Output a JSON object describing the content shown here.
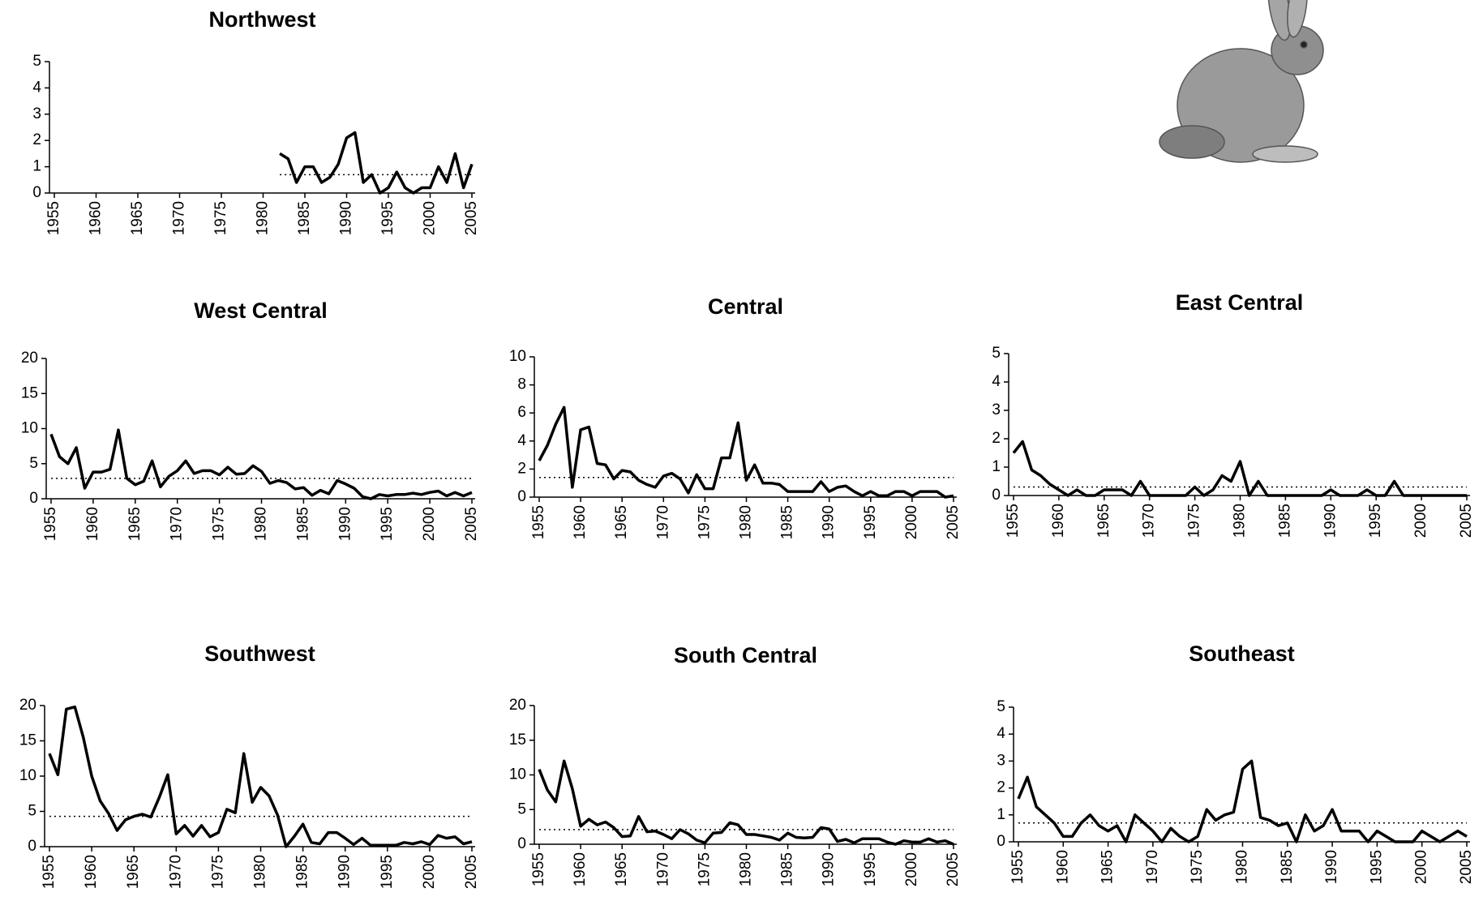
{
  "chart_data": [
    {
      "type": "line",
      "title": "Northwest",
      "color": "#000000",
      "x": [
        1982,
        1983,
        1984,
        1985,
        1986,
        1987,
        1988,
        1989,
        1990,
        1991,
        1992,
        1993,
        1994,
        1995,
        1996,
        1997,
        1998,
        1999,
        2000,
        2001,
        2002,
        2003,
        2004,
        2005
      ],
      "values": [
        1.5,
        1.3,
        0.4,
        1.0,
        1.0,
        0.4,
        0.6,
        1.1,
        2.1,
        2.3,
        0.4,
        0.7,
        0,
        0.2,
        0.8,
        0.2,
        0,
        0.2,
        0.2,
        1.0,
        0.4,
        1.5,
        0.2,
        1.1
      ],
      "mean": 0.7,
      "xlim": [
        1955,
        2005
      ],
      "xticks": [
        1955,
        1960,
        1965,
        1970,
        1975,
        1980,
        1985,
        1990,
        1995,
        2000,
        2005
      ],
      "ylim": [
        0,
        5
      ],
      "yticks": [
        0,
        1,
        2,
        3,
        4,
        5
      ]
    },
    {
      "type": "line",
      "title": "West Central",
      "color": "#000000",
      "x": [
        1955,
        1956,
        1957,
        1958,
        1959,
        1960,
        1961,
        1962,
        1963,
        1964,
        1965,
        1966,
        1967,
        1968,
        1969,
        1970,
        1971,
        1972,
        1973,
        1974,
        1975,
        1976,
        1977,
        1978,
        1979,
        1980,
        1981,
        1982,
        1983,
        1984,
        1985,
        1986,
        1987,
        1988,
        1989,
        1990,
        1991,
        1992,
        1993,
        1994,
        1995,
        1996,
        1997,
        1998,
        1999,
        2000,
        2001,
        2002,
        2003,
        2004,
        2005
      ],
      "values": [
        9.2,
        6,
        5,
        7.3,
        1.5,
        3.8,
        3.8,
        4.2,
        9.8,
        2.9,
        2,
        2.5,
        5.4,
        1.7,
        3.2,
        4,
        5.4,
        3.6,
        4,
        4,
        3.4,
        4.5,
        3.5,
        3.6,
        4.7,
        3.9,
        2.2,
        2.6,
        2.3,
        1.4,
        1.6,
        0.5,
        1.2,
        0.7,
        2.6,
        2.1,
        1.5,
        0.3,
        0,
        0.6,
        0.4,
        0.6,
        0.6,
        0.8,
        0.6,
        0.9,
        1.1,
        0.4,
        0.9,
        0.4,
        0.9
      ],
      "mean": 2.9,
      "xlim": [
        1955,
        2005
      ],
      "xticks": [
        1955,
        1960,
        1965,
        1970,
        1975,
        1980,
        1985,
        1990,
        1995,
        2000,
        2005
      ],
      "ylim": [
        0,
        20
      ],
      "yticks": [
        0,
        5,
        10,
        15,
        20
      ]
    },
    {
      "type": "line",
      "title": "Central",
      "color": "#000000",
      "x": [
        1955,
        1956,
        1957,
        1958,
        1959,
        1960,
        1961,
        1962,
        1963,
        1964,
        1965,
        1966,
        1967,
        1968,
        1969,
        1970,
        1971,
        1972,
        1973,
        1974,
        1975,
        1976,
        1977,
        1978,
        1979,
        1980,
        1981,
        1982,
        1983,
        1984,
        1985,
        1986,
        1987,
        1988,
        1989,
        1990,
        1991,
        1992,
        1993,
        1994,
        1995,
        1996,
        1997,
        1998,
        1999,
        2000,
        2001,
        2002,
        2003,
        2004,
        2005
      ],
      "values": [
        2.6,
        3.7,
        5.2,
        6.4,
        0.7,
        4.8,
        5,
        2.4,
        2.3,
        1.3,
        1.9,
        1.8,
        1.2,
        0.9,
        0.7,
        1.5,
        1.7,
        1.3,
        0.3,
        1.6,
        0.6,
        0.6,
        2.8,
        2.8,
        5.3,
        1.2,
        2.3,
        1,
        1,
        0.9,
        0.4,
        0.4,
        0.4,
        0.4,
        1.1,
        0.4,
        0.7,
        0.8,
        0.4,
        0.1,
        0.4,
        0.1,
        0.1,
        0.4,
        0.4,
        0.1,
        0.4,
        0.4,
        0.4,
        0,
        0.1
      ],
      "mean": 1.4,
      "xlim": [
        1955,
        2005
      ],
      "xticks": [
        1955,
        1960,
        1965,
        1970,
        1975,
        1980,
        1985,
        1990,
        1995,
        2000,
        2005
      ],
      "ylim": [
        0,
        10
      ],
      "yticks": [
        0,
        2,
        4,
        6,
        8,
        10
      ]
    },
    {
      "type": "line",
      "title": "East Central",
      "color": "#000000",
      "x": [
        1955,
        1956,
        1957,
        1958,
        1959,
        1960,
        1961,
        1962,
        1963,
        1964,
        1965,
        1966,
        1967,
        1968,
        1969,
        1970,
        1971,
        1972,
        1973,
        1974,
        1975,
        1976,
        1977,
        1978,
        1979,
        1980,
        1981,
        1982,
        1983,
        1984,
        1985,
        1986,
        1987,
        1988,
        1989,
        1990,
        1991,
        1992,
        1993,
        1994,
        1995,
        1996,
        1997,
        1998,
        1999,
        2000,
        2001,
        2002,
        2003,
        2004,
        2005
      ],
      "values": [
        1.5,
        1.9,
        0.9,
        0.7,
        0.4,
        0.2,
        0,
        0.2,
        0,
        0,
        0.2,
        0.2,
        0.2,
        0,
        0.5,
        0,
        0,
        0,
        0,
        0,
        0.3,
        0,
        0.2,
        0.7,
        0.5,
        1.2,
        0,
        0.5,
        0,
        0,
        0,
        0,
        0,
        0,
        0,
        0.2,
        0,
        0,
        0,
        0.2,
        0,
        0,
        0.5,
        0,
        0,
        0,
        0,
        0,
        0,
        0,
        0
      ],
      "mean": 0.3,
      "xlim": [
        1955,
        2005
      ],
      "xticks": [
        1955,
        1960,
        1965,
        1970,
        1975,
        1980,
        1985,
        1990,
        1995,
        2000,
        2005
      ],
      "ylim": [
        0,
        5
      ],
      "yticks": [
        0,
        1,
        2,
        3,
        4,
        5
      ]
    },
    {
      "type": "line",
      "title": "Southwest",
      "color": "#000000",
      "x": [
        1955,
        1956,
        1957,
        1958,
        1959,
        1960,
        1961,
        1962,
        1963,
        1964,
        1965,
        1966,
        1967,
        1968,
        1969,
        1970,
        1971,
        1972,
        1973,
        1974,
        1975,
        1976,
        1977,
        1978,
        1979,
        1980,
        1981,
        1982,
        1983,
        1984,
        1985,
        1986,
        1987,
        1988,
        1989,
        1990,
        1991,
        1992,
        1993,
        1994,
        1995,
        1996,
        1997,
        1998,
        1999,
        2000,
        2001,
        2002,
        2003,
        2004,
        2005
      ],
      "values": [
        13.2,
        10.2,
        19.5,
        19.8,
        15.5,
        10,
        6.5,
        4.7,
        2.3,
        3.8,
        4.3,
        4.6,
        4.2,
        7,
        10.2,
        1.8,
        3,
        1.5,
        3,
        1.4,
        2,
        5.3,
        4.8,
        13.2,
        6.3,
        8.4,
        7.2,
        4.5,
        0,
        1.5,
        3.2,
        0.6,
        0.4,
        2,
        2,
        1.2,
        0.3,
        1.2,
        0.2,
        0.2,
        0.2,
        0.2,
        0.6,
        0.4,
        0.7,
        0.3,
        1.6,
        1.2,
        1.4,
        0.4,
        0.7
      ],
      "mean": 4.3,
      "xlim": [
        1955,
        2005
      ],
      "xticks": [
        1955,
        1960,
        1965,
        1970,
        1975,
        1980,
        1985,
        1990,
        1995,
        2000,
        2005
      ],
      "ylim": [
        0,
        20
      ],
      "yticks": [
        0,
        5,
        10,
        15,
        20
      ]
    },
    {
      "type": "line",
      "title": "South Central",
      "color": "#000000",
      "x": [
        1955,
        1956,
        1957,
        1958,
        1959,
        1960,
        1961,
        1962,
        1963,
        1964,
        1965,
        1966,
        1967,
        1968,
        1969,
        1970,
        1971,
        1972,
        1973,
        1974,
        1975,
        1976,
        1977,
        1978,
        1979,
        1980,
        1981,
        1982,
        1983,
        1984,
        1985,
        1986,
        1987,
        1988,
        1989,
        1990,
        1991,
        1992,
        1993,
        1994,
        1995,
        1996,
        1997,
        1998,
        1999,
        2000,
        2001,
        2002,
        2003,
        2004,
        2005
      ],
      "values": [
        10.8,
        7.8,
        6.1,
        12,
        8,
        2.6,
        3.6,
        2.8,
        3.2,
        2.4,
        1.1,
        1.2,
        4,
        1.8,
        1.9,
        1.4,
        0.8,
        2.1,
        1.5,
        0.6,
        0.2,
        1.6,
        1.7,
        3.1,
        2.8,
        1.4,
        1.4,
        1.2,
        1,
        0.6,
        1.6,
        1,
        0.9,
        1,
        2.4,
        2.2,
        0.4,
        0.7,
        0.2,
        0.8,
        0.8,
        0.8,
        0.3,
        0,
        0.5,
        0.3,
        0.3,
        0.8,
        0.3,
        0.5,
        0
      ],
      "mean": 2.1,
      "xlim": [
        1955,
        2005
      ],
      "xticks": [
        1955,
        1960,
        1965,
        1970,
        1975,
        1980,
        1985,
        1990,
        1995,
        2000,
        2005
      ],
      "ylim": [
        0,
        20
      ],
      "yticks": [
        0,
        5,
        10,
        15,
        20
      ]
    },
    {
      "type": "line",
      "title": "Southeast",
      "color": "#000000",
      "x": [
        1955,
        1956,
        1957,
        1958,
        1959,
        1960,
        1961,
        1962,
        1963,
        1964,
        1965,
        1966,
        1967,
        1968,
        1969,
        1970,
        1971,
        1972,
        1973,
        1974,
        1975,
        1976,
        1977,
        1978,
        1979,
        1980,
        1981,
        1982,
        1983,
        1984,
        1985,
        1986,
        1987,
        1988,
        1989,
        1990,
        1991,
        1992,
        1993,
        1994,
        1995,
        1996,
        1997,
        1998,
        1999,
        2000,
        2001,
        2002,
        2003,
        2004,
        2005
      ],
      "values": [
        1.6,
        2.4,
        1.3,
        1,
        0.7,
        0.2,
        0.2,
        0.7,
        1,
        0.6,
        0.4,
        0.6,
        0,
        1,
        0.7,
        0.4,
        0,
        0.5,
        0.2,
        0,
        0.2,
        1.2,
        0.8,
        1,
        1.1,
        2.7,
        3,
        0.9,
        0.8,
        0.6,
        0.7,
        0,
        1,
        0.4,
        0.6,
        1.2,
        0.4,
        0.4,
        0.4,
        0,
        0.4,
        0.2,
        0,
        0,
        0,
        0.4,
        0.2,
        0,
        0.2,
        0.4,
        0.2
      ],
      "mean": 0.7,
      "xlim": [
        1955,
        2005
      ],
      "xticks": [
        1955,
        1960,
        1965,
        1970,
        1975,
        1980,
        1985,
        1990,
        1995,
        2000,
        2005
      ],
      "ylim": [
        0,
        5
      ],
      "yticks": [
        0,
        1,
        2,
        3,
        4,
        5
      ]
    }
  ]
}
